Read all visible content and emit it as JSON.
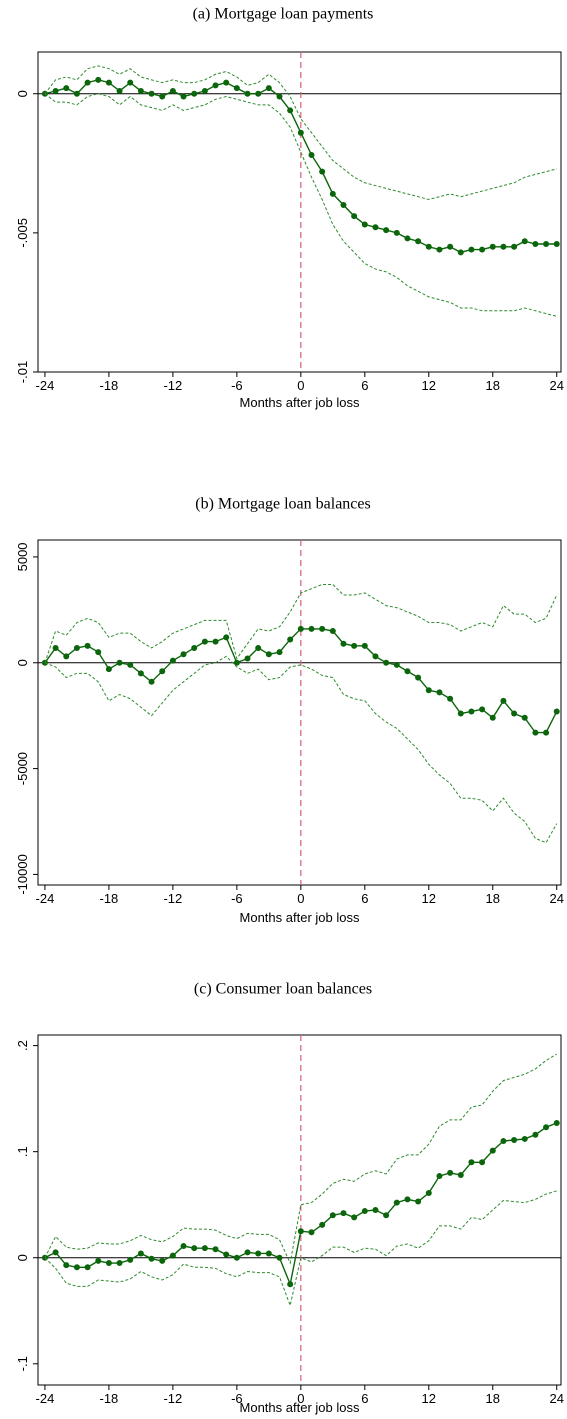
{
  "chart_data": [
    {
      "type": "line",
      "title": "(a) Mortgage loan payments",
      "xlabel": "Months after job loss",
      "x": [
        -24,
        -23,
        -22,
        -21,
        -20,
        -19,
        -18,
        -17,
        -16,
        -15,
        -14,
        -13,
        -12,
        -11,
        -10,
        -9,
        -8,
        -7,
        -6,
        -5,
        -4,
        -3,
        -2,
        -1,
        0,
        1,
        2,
        3,
        4,
        5,
        6,
        7,
        8,
        9,
        10,
        11,
        12,
        13,
        14,
        15,
        16,
        17,
        18,
        19,
        20,
        21,
        22,
        23,
        24
      ],
      "xlim": [
        -24.65,
        24.4
      ],
      "xticks": [
        -24,
        -18,
        -12,
        -6,
        0,
        6,
        12,
        18,
        24
      ],
      "ylim": [
        -0.01,
        0.0015
      ],
      "yticks": [
        0,
        {
          "value": -0.005,
          "label": "-.005"
        },
        {
          "value": -0.01,
          "label": "-.01"
        }
      ],
      "hline": 0,
      "vline": 0,
      "series": [
        {
          "color": "#0b650b",
          "style": "solid",
          "markers": true,
          "values": [
            0,
            0.0001,
            0.0002,
            0,
            0.0004,
            0.0005,
            0.0004,
            0.0001,
            0.0004,
            0.0001,
            0,
            -0.0001,
            0.0001,
            -0.0001,
            0,
            0.0001,
            0.0003,
            0.0004,
            0.0002,
            0,
            0,
            0.0002,
            -0.0001,
            -0.0006,
            -0.0014,
            -0.0022,
            -0.0028,
            -0.0036,
            -0.004,
            -0.0044,
            -0.0047,
            -0.0048,
            -0.0049,
            -0.005,
            -0.0052,
            -0.0053,
            -0.0055,
            -0.0056,
            -0.0055,
            -0.0057,
            -0.0056,
            -0.0056,
            -0.0055,
            -0.0055,
            -0.0055,
            -0.0053,
            -0.0054,
            -0.0054,
            -0.0054
          ]
        },
        {
          "color": "#2e8b2e",
          "style": "dashed",
          "markers": false,
          "values": [
            0,
            0.0005,
            0.0006,
            0.0005,
            0.0009,
            0.001,
            0.0009,
            0.0007,
            0.0009,
            0.0006,
            0.0005,
            0.0004,
            0.0005,
            0.0004,
            0.0004,
            0.0005,
            0.0007,
            0.0008,
            0.0006,
            0.0003,
            0.0004,
            0.0007,
            0.0004,
            -0.0001,
            -0.0009,
            -0.0014,
            -0.0019,
            -0.0024,
            -0.0027,
            -0.003,
            -0.0032,
            -0.0033,
            -0.0034,
            -0.0035,
            -0.0036,
            -0.0037,
            -0.0038,
            -0.0037,
            -0.0036,
            -0.0037,
            -0.0036,
            -0.0035,
            -0.0034,
            -0.0033,
            -0.0032,
            -0.003,
            -0.0029,
            -0.0028,
            -0.0027
          ]
        },
        {
          "color": "#2e8b2e",
          "style": "dashed",
          "markers": false,
          "values": [
            0,
            -0.0003,
            -0.0003,
            -0.0004,
            -0.0001,
            0,
            -0.0001,
            -0.0004,
            -0.0001,
            -0.0004,
            -0.0005,
            -0.0006,
            -0.0004,
            -0.0006,
            -0.0005,
            -0.0004,
            -0.0002,
            -0.0001,
            -0.0002,
            -0.0003,
            -0.0004,
            -0.0004,
            -0.0007,
            -0.0012,
            -0.0021,
            -0.003,
            -0.0038,
            -0.0047,
            -0.0053,
            -0.0057,
            -0.0061,
            -0.0063,
            -0.0064,
            -0.0066,
            -0.0069,
            -0.0071,
            -0.0073,
            -0.0074,
            -0.0075,
            -0.0077,
            -0.0077,
            -0.0078,
            -0.0078,
            -0.0078,
            -0.0078,
            -0.0077,
            -0.0078,
            -0.0079,
            -0.008
          ]
        }
      ]
    },
    {
      "type": "line",
      "title": "(b) Mortgage loan balances",
      "xlabel": "Months after job loss",
      "x": [
        -24,
        -23,
        -22,
        -21,
        -20,
        -19,
        -18,
        -17,
        -16,
        -15,
        -14,
        -13,
        -12,
        -11,
        -10,
        -9,
        -8,
        -7,
        -6,
        -5,
        -4,
        -3,
        -2,
        -1,
        0,
        1,
        2,
        3,
        4,
        5,
        6,
        7,
        8,
        9,
        10,
        11,
        12,
        13,
        14,
        15,
        16,
        17,
        18,
        19,
        20,
        21,
        22,
        23,
        24
      ],
      "xlim": [
        -24.65,
        24.4
      ],
      "xticks": [
        -24,
        -18,
        -12,
        -6,
        0,
        6,
        12,
        18,
        24
      ],
      "ylim": [
        -10500,
        5800
      ],
      "yticks": [
        5000,
        0,
        -5000,
        -10000
      ],
      "hline": 0,
      "vline": 0,
      "series": [
        {
          "color": "#0b650b",
          "style": "solid",
          "markers": true,
          "values": [
            0,
            700,
            300,
            700,
            800,
            500,
            -300,
            0,
            -100,
            -500,
            -900,
            -400,
            100,
            400,
            700,
            1000,
            1000,
            1200,
            0,
            200,
            700,
            400,
            500,
            1100,
            1600,
            1600,
            1600,
            1500,
            900,
            800,
            800,
            300,
            0,
            -100,
            -400,
            -700,
            -1300,
            -1400,
            -1700,
            -2400,
            -2300,
            -2200,
            -2600,
            -1800,
            -2400,
            -2600,
            -3300,
            -3300,
            -2300
          ]
        },
        {
          "color": "#2e8b2e",
          "style": "dashed",
          "markers": false,
          "values": [
            0,
            1500,
            1300,
            1900,
            2100,
            1900,
            1200,
            1400,
            1400,
            1000,
            700,
            1000,
            1400,
            1600,
            1800,
            2000,
            2000,
            2000,
            200,
            900,
            1600,
            1500,
            1700,
            2400,
            3300,
            3500,
            3700,
            3700,
            3200,
            3200,
            3300,
            3000,
            2700,
            2600,
            2400,
            2200,
            1900,
            1900,
            1800,
            1500,
            1700,
            1900,
            1700,
            2700,
            2300,
            2300,
            1900,
            2100,
            3200
          ]
        },
        {
          "color": "#2e8b2e",
          "style": "dashed",
          "markers": false,
          "values": [
            0,
            -200,
            -700,
            -500,
            -500,
            -900,
            -1800,
            -1500,
            -1700,
            -2100,
            -2500,
            -1900,
            -1300,
            -900,
            -500,
            -100,
            0,
            300,
            -200,
            -500,
            -300,
            -800,
            -700,
            -200,
            -100,
            -300,
            -600,
            -700,
            -1500,
            -1700,
            -1800,
            -2400,
            -2800,
            -3100,
            -3600,
            -4100,
            -4800,
            -5300,
            -5700,
            -6400,
            -6400,
            -6500,
            -7000,
            -6400,
            -7100,
            -7500,
            -8300,
            -8500,
            -7600
          ]
        }
      ]
    },
    {
      "type": "line",
      "title": "(c) Consumer loan balances",
      "xlabel": "Months after job loss",
      "x": [
        -24,
        -23,
        -22,
        -21,
        -20,
        -19,
        -18,
        -17,
        -16,
        -15,
        -14,
        -13,
        -12,
        -11,
        -10,
        -9,
        -8,
        -7,
        -6,
        -5,
        -4,
        -3,
        -2,
        -1,
        0,
        1,
        2,
        3,
        4,
        5,
        6,
        7,
        8,
        9,
        10,
        11,
        12,
        13,
        14,
        15,
        16,
        17,
        18,
        19,
        20,
        21,
        22,
        23,
        24
      ],
      "xlim": [
        -24.65,
        24.4
      ],
      "xticks": [
        -24,
        -18,
        -12,
        -6,
        0,
        6,
        12,
        18,
        24
      ],
      "ylim": [
        -0.12,
        0.21
      ],
      "yticks": [
        {
          "value": 0.2,
          "label": ".2"
        },
        {
          "value": 0.1,
          "label": ".1"
        },
        0,
        {
          "value": -0.1,
          "label": "-.1"
        }
      ],
      "hline": 0,
      "vline": 0,
      "series": [
        {
          "color": "#0b650b",
          "style": "solid",
          "markers": true,
          "values": [
            0,
            0.005,
            -0.007,
            -0.009,
            -0.009,
            -0.003,
            -0.005,
            -0.005,
            -0.002,
            0.004,
            -0.001,
            -0.003,
            0.002,
            0.011,
            0.009,
            0.009,
            0.008,
            0.003,
            0,
            0.005,
            0.004,
            0.004,
            0,
            -0.025,
            0.025,
            0.024,
            0.031,
            0.04,
            0.042,
            0.038,
            0.044,
            0.045,
            0.04,
            0.052,
            0.055,
            0.053,
            0.061,
            0.077,
            0.08,
            0.078,
            0.09,
            0.09,
            0.101,
            0.11,
            0.111,
            0.112,
            0.116,
            0.123,
            0.127
          ]
        },
        {
          "color": "#2e8b2e",
          "style": "dashed",
          "markers": false,
          "values": [
            0,
            0.02,
            0.01,
            0.008,
            0.009,
            0.014,
            0.013,
            0.013,
            0.016,
            0.021,
            0.017,
            0.015,
            0.02,
            0.028,
            0.027,
            0.027,
            0.026,
            0.021,
            0.018,
            0.023,
            0.022,
            0.022,
            0.017,
            -0.005,
            0.05,
            0.052,
            0.06,
            0.07,
            0.074,
            0.072,
            0.079,
            0.082,
            0.079,
            0.093,
            0.097,
            0.097,
            0.107,
            0.124,
            0.13,
            0.13,
            0.142,
            0.144,
            0.157,
            0.167,
            0.17,
            0.173,
            0.178,
            0.186,
            0.192
          ]
        },
        {
          "color": "#2e8b2e",
          "style": "dashed",
          "markers": false,
          "values": [
            0,
            -0.01,
            -0.024,
            -0.027,
            -0.027,
            -0.021,
            -0.022,
            -0.023,
            -0.02,
            -0.013,
            -0.018,
            -0.021,
            -0.016,
            -0.006,
            -0.009,
            -0.009,
            -0.01,
            -0.015,
            -0.018,
            -0.013,
            -0.014,
            -0.014,
            -0.018,
            -0.045,
            0,
            -0.004,
            0.002,
            0.01,
            0.01,
            0.005,
            0.009,
            0.008,
            0.002,
            0.011,
            0.013,
            0.009,
            0.016,
            0.03,
            0.03,
            0.027,
            0.038,
            0.036,
            0.045,
            0.054,
            0.053,
            0.052,
            0.055,
            0.06,
            0.063
          ]
        }
      ]
    }
  ]
}
